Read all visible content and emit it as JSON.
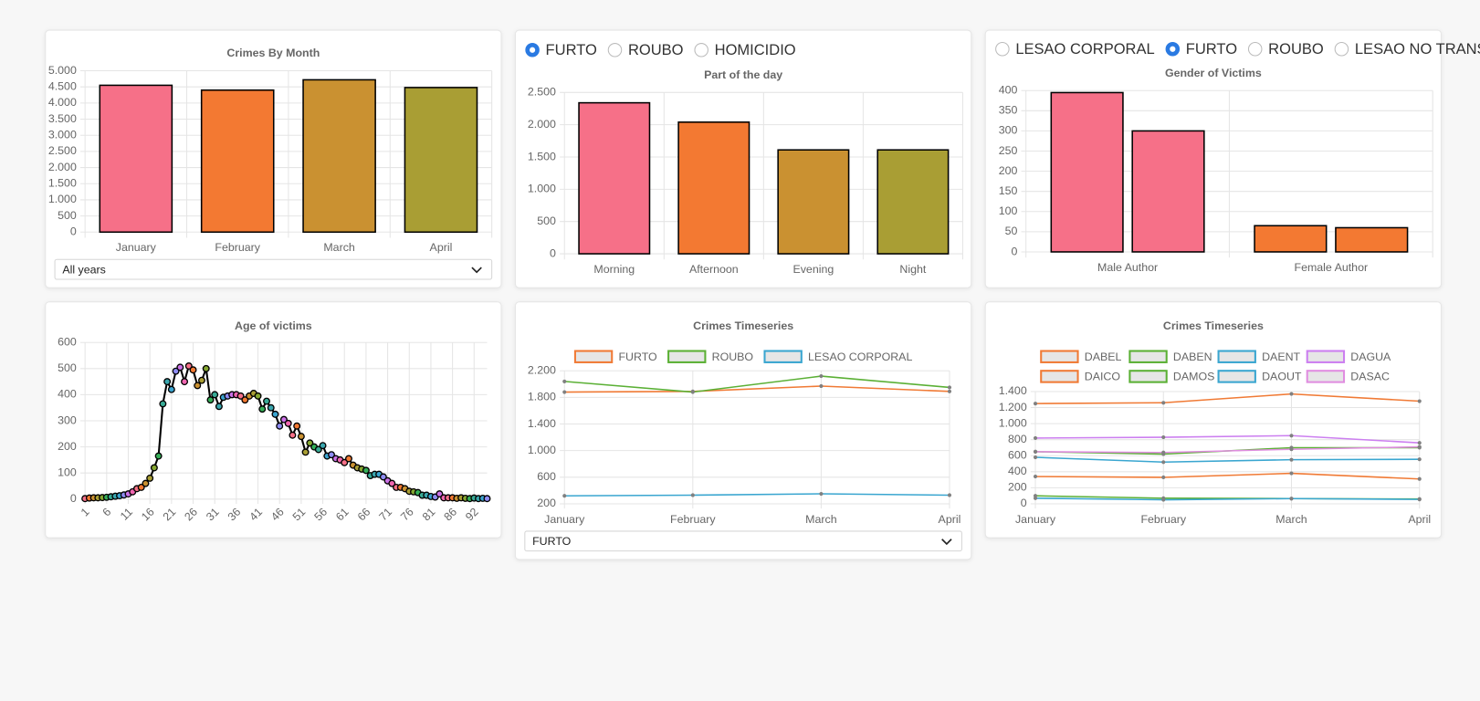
{
  "radio_groups": [
    {
      "options": [
        "FURTO",
        "ROUBO",
        "HOMICIDIO"
      ],
      "selected": 0
    },
    {
      "options": [
        "LESAO CORPORAL",
        "FURTO",
        "ROUBO",
        "LESAO NO TRANSITO"
      ],
      "selected": 1
    }
  ],
  "selects": [
    {
      "value": "All years"
    },
    {
      "value": "FURTO"
    }
  ],
  "chart_data": [
    {
      "type": "bar",
      "title": "Crimes By Month",
      "categories": [
        "January",
        "February",
        "March",
        "April"
      ],
      "values": [
        4550,
        4400,
        4720,
        4480
      ],
      "colors": [
        "#f67088",
        "#f37932",
        "#ca9131",
        "#a99e34"
      ],
      "ylim": [
        0,
        5000
      ],
      "yticks": [
        0,
        500,
        {
          "value": 1000,
          "label": "1.000"
        },
        {
          "value": 1500,
          "label": "1.500"
        },
        {
          "value": 2000,
          "label": "2.000"
        },
        {
          "value": 2500,
          "label": "2.500"
        },
        {
          "value": 3000,
          "label": "3.000"
        },
        {
          "value": 3500,
          "label": "3.500"
        },
        {
          "value": 4000,
          "label": "4.000"
        },
        {
          "value": 4500,
          "label": "4.500"
        },
        {
          "value": 5000,
          "label": "5.000"
        }
      ],
      "grid": true
    },
    {
      "type": "bar",
      "title": "Part of the day",
      "categories": [
        "Morning",
        "Afternoon",
        "Evening",
        "Night"
      ],
      "values": [
        2340,
        2040,
        1610,
        1610
      ],
      "colors": [
        "#f67088",
        "#f37932",
        "#ca9131",
        "#a99e34"
      ],
      "ylim": [
        0,
        2500
      ],
      "yticks": [
        0,
        500,
        {
          "value": 1000,
          "label": "1.000"
        },
        {
          "value": 1500,
          "label": "1.500"
        },
        {
          "value": 2000,
          "label": "2.000"
        },
        {
          "value": 2500,
          "label": "2.500"
        }
      ],
      "grid": true
    },
    {
      "type": "grouped_bar",
      "title": "Gender of Victims",
      "categories": [
        "Male Author",
        "Female Author"
      ],
      "series": [
        {
          "values": [
            395,
            65
          ]
        },
        {
          "values": [
            300,
            60
          ]
        }
      ],
      "colors": [
        "#f67088",
        "#f37932"
      ],
      "ylim": [
        0,
        400
      ],
      "yticks": [
        0,
        50,
        100,
        150,
        200,
        250,
        300,
        350,
        400
      ],
      "grid": true
    },
    {
      "type": "line",
      "title": "Age of victims",
      "categories": [
        "1",
        null,
        null,
        null,
        null,
        "6",
        null,
        null,
        null,
        null,
        "11",
        null,
        null,
        null,
        null,
        "16",
        null,
        null,
        null,
        null,
        "21",
        null,
        null,
        null,
        null,
        "26",
        null,
        null,
        null,
        null,
        "31",
        null,
        null,
        null,
        null,
        "36",
        null,
        null,
        null,
        null,
        "41",
        null,
        null,
        null,
        null,
        "46",
        null,
        null,
        null,
        null,
        "51",
        null,
        null,
        null,
        null,
        "56",
        null,
        null,
        null,
        null,
        "61",
        null,
        null,
        null,
        null,
        "66",
        null,
        null,
        null,
        null,
        "71",
        null,
        null,
        null,
        null,
        "76",
        null,
        null,
        null,
        null,
        "81",
        null,
        null,
        null,
        null,
        "86",
        null,
        null,
        null,
        null,
        "92",
        null,
        null,
        null
      ],
      "values": [
        2,
        4,
        5,
        5,
        6,
        7,
        9,
        11,
        13,
        16,
        20,
        28,
        40,
        45,
        60,
        80,
        120,
        165,
        365,
        450,
        420,
        490,
        505,
        450,
        510,
        495,
        435,
        455,
        500,
        380,
        400,
        355,
        390,
        395,
        400,
        400,
        395,
        380,
        395,
        405,
        395,
        345,
        375,
        350,
        325,
        280,
        305,
        290,
        245,
        280,
        240,
        180,
        215,
        200,
        190,
        205,
        165,
        170,
        155,
        150,
        140,
        155,
        130,
        120,
        115,
        110,
        90,
        95,
        95,
        85,
        70,
        60,
        45,
        45,
        40,
        30,
        28,
        25,
        15,
        15,
        10,
        8,
        20,
        5,
        5,
        5,
        3,
        5,
        3,
        2,
        4,
        2,
        3,
        2
      ],
      "color": "#000000",
      "point_colors": [
        "#f67088",
        "#f37932",
        "#ca9131",
        "#a99e34",
        "#85a731",
        "#35ae57",
        "#38aa95",
        "#3aa6ae",
        "#3ba4cf",
        "#8e8cf3",
        "#cc72e8",
        "#f066b0"
      ],
      "ylim": [
        0,
        600
      ],
      "yticks": [
        0,
        100,
        200,
        300,
        400,
        500,
        600
      ],
      "grid": true
    },
    {
      "type": "line",
      "title": "Crimes Timeseries",
      "categories": [
        "January",
        "February",
        "March",
        "April"
      ],
      "series": [
        {
          "name": "FURTO",
          "color": "#f07a35",
          "values": [
            1880,
            1890,
            1970,
            1890
          ]
        },
        {
          "name": "ROUBO",
          "color": "#5bb035",
          "values": [
            2040,
            1880,
            2120,
            1950
          ]
        },
        {
          "name": "LESAO CORPORAL",
          "color": "#3aa6d0",
          "values": [
            320,
            330,
            350,
            330
          ]
        }
      ],
      "point_color": "#808080",
      "legend": "top",
      "ylim": [
        200,
        2200
      ],
      "yticks": [
        200,
        600,
        {
          "value": 1000,
          "label": "1.000"
        },
        {
          "value": 1400,
          "label": "1.400"
        },
        {
          "value": 1800,
          "label": "1.800"
        },
        {
          "value": 2200,
          "label": "2.200"
        }
      ],
      "grid": true
    },
    {
      "type": "line",
      "title": "Crimes Timeseries",
      "categories": [
        "January",
        "February",
        "March",
        "April"
      ],
      "series": [
        {
          "name": "DABEL",
          "color": "#f07a35",
          "values": [
            1250,
            1260,
            1370,
            1280
          ]
        },
        {
          "name": "DABEN",
          "color": "#5bb035",
          "values": [
            650,
            620,
            700,
            700
          ]
        },
        {
          "name": "DAENT",
          "color": "#3aa6d0",
          "values": [
            580,
            520,
            550,
            555
          ]
        },
        {
          "name": "DAGUA",
          "color": "#cc7ff0",
          "values": [
            820,
            830,
            850,
            760
          ]
        },
        {
          "name": "DAICO",
          "color": "#f07a35",
          "values": [
            340,
            330,
            380,
            310
          ]
        },
        {
          "name": "DAMOS",
          "color": "#5bb035",
          "values": [
            100,
            70,
            65,
            60
          ]
        },
        {
          "name": "DAOUT",
          "color": "#3aa6d0",
          "values": [
            70,
            50,
            65,
            55
          ]
        },
        {
          "name": "DASAC",
          "color": "#e08de0",
          "values": [
            650,
            640,
            680,
            710
          ]
        }
      ],
      "point_color": "#808080",
      "legend": "top",
      "ylim": [
        0,
        1400
      ],
      "yticks": [
        0,
        200,
        400,
        600,
        800,
        {
          "value": 1000,
          "label": "1.000"
        },
        {
          "value": 1200,
          "label": "1.200"
        },
        {
          "value": 1400,
          "label": "1.400"
        }
      ],
      "grid": true
    }
  ]
}
